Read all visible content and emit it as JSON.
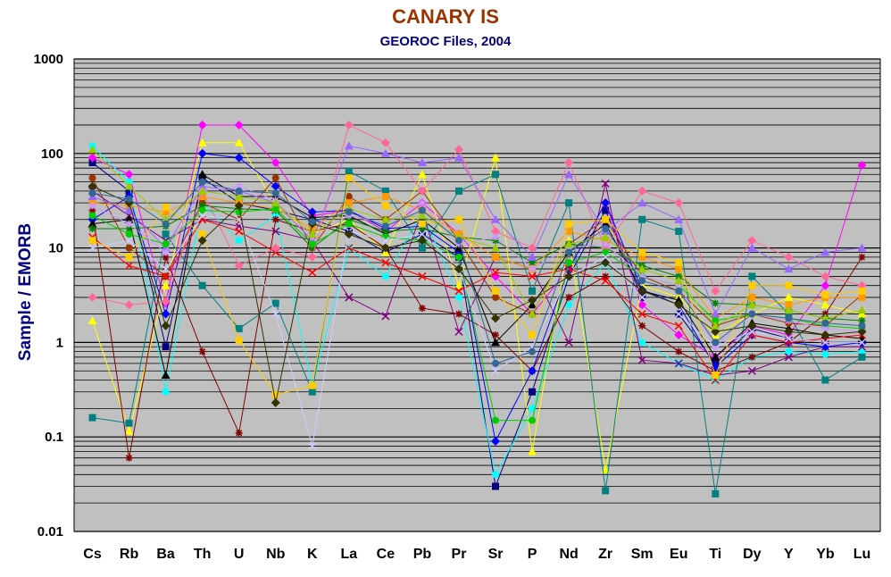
{
  "chart_data": {
    "type": "line",
    "title": "CANARY IS",
    "subtitle": "GEOROC Files, 2004",
    "xlabel": "",
    "ylabel": "Sample / EMORB",
    "y_scale": "log",
    "ylim": [
      0.01,
      1000
    ],
    "y_ticks": [
      "0.01",
      "0.1",
      "1",
      "10",
      "100",
      "1000"
    ],
    "grid": true,
    "legend": "none",
    "plot_background": "#c0c0c0",
    "categories": [
      "Cs",
      "Rb",
      "Ba",
      "Th",
      "U",
      "Nb",
      "K",
      "La",
      "Ce",
      "Pb",
      "Pr",
      "Sr",
      "P",
      "Nd",
      "Zr",
      "Sm",
      "Eu",
      "Ti",
      "Dy",
      "Y",
      "Yb",
      "Lu"
    ],
    "series": [
      {
        "color": "#000080",
        "values": [
          80,
          40,
          0.9,
          55,
          30,
          25,
          20,
          15,
          9,
          14,
          8,
          0.03,
          0.3,
          5,
          25,
          3,
          2,
          0.6,
          1.4,
          1.1,
          1,
          1
        ]
      },
      {
        "color": "#ff00ff",
        "values": [
          90,
          60,
          2.6,
          200,
          200,
          80,
          22,
          25,
          15,
          30,
          14,
          5,
          2,
          6,
          30,
          2.5,
          1.2,
          0.7,
          1.5,
          1.2,
          4,
          75
        ]
      },
      {
        "color": "#ffff00",
        "values": [
          1.7,
          0.115,
          4,
          130,
          130,
          28,
          14,
          20,
          9,
          60,
          4,
          90,
          0.07,
          12,
          0.045,
          4,
          3,
          1.2,
          2,
          3,
          2.5,
          2
        ]
      },
      {
        "color": "#00ffff",
        "values": [
          120,
          50,
          0.3,
          30,
          12,
          22,
          0.35,
          10,
          5,
          24,
          3,
          0.04,
          0.2,
          2.5,
          7,
          1,
          0.6,
          0.4,
          0.7,
          0.8,
          0.75,
          0.8
        ]
      },
      {
        "color": "#800080",
        "values": [
          40,
          22,
          12,
          20,
          17,
          15,
          12,
          3,
          1.9,
          25,
          1.3,
          8,
          6,
          1,
          48,
          0.65,
          0.6,
          0.45,
          0.5,
          0.7,
          0.9,
          0.9
        ]
      },
      {
        "color": "#800000",
        "values": [
          25,
          0.06,
          8,
          0.8,
          0.11,
          20,
          15,
          18,
          10,
          2.3,
          2,
          1.2,
          0.5,
          3,
          5,
          1.5,
          0.8,
          0.5,
          0.7,
          1,
          2,
          8
        ]
      },
      {
        "color": "#008080",
        "values": [
          0.16,
          0.14,
          14,
          4,
          1.4,
          2.6,
          0.3,
          65,
          40,
          10,
          40,
          60,
          3.5,
          30,
          0.027,
          20,
          15,
          0.025,
          5,
          2,
          0.4,
          0.7
        ]
      },
      {
        "color": "#0000ff",
        "values": [
          20,
          35,
          2,
          100,
          90,
          45,
          24,
          25,
          16,
          17,
          9,
          0.09,
          0.5,
          6,
          30,
          3.6,
          2.5,
          0.55,
          1.2,
          1,
          0.9,
          1
        ]
      },
      {
        "color": "#000000",
        "values": [
          18,
          20,
          0.45,
          60,
          35,
          35,
          21,
          22,
          14,
          20,
          10,
          1,
          2.5,
          9,
          18,
          3.5,
          2.8,
          0.7,
          1.6,
          1.4,
          1.2,
          1.1
        ]
      },
      {
        "color": "#993300",
        "values": [
          55,
          10,
          5,
          30,
          20,
          55,
          10,
          35,
          20,
          40,
          12,
          3,
          2,
          11,
          20,
          5,
          3.5,
          1.5,
          2,
          1.6,
          1.5,
          3.2
        ]
      },
      {
        "color": "#ff0000",
        "values": [
          13,
          6.5,
          5,
          20,
          15,
          9,
          5.5,
          10,
          7,
          5,
          3.5,
          5.5,
          5,
          6,
          4.5,
          2,
          1.5,
          0.4,
          1.2,
          1,
          1.1,
          1.2
        ]
      },
      {
        "color": "#008000",
        "values": [
          16,
          16,
          17,
          28,
          26,
          25,
          10,
          20,
          15,
          16,
          13,
          12,
          7,
          11,
          10,
          6.5,
          5,
          2.6,
          2.5,
          2.2,
          1.8,
          1.7
        ]
      },
      {
        "color": "#ff9900",
        "values": [
          30,
          28,
          24,
          35,
          30,
          26,
          16,
          30,
          35,
          25,
          14,
          8,
          6,
          15,
          12,
          8,
          6,
          1.8,
          3,
          2.5,
          3,
          3
        ]
      },
      {
        "color": "#ff6699",
        "values": [
          3,
          2.5,
          2.7,
          40,
          6.5,
          10,
          8,
          200,
          130,
          40,
          110,
          15,
          10,
          80,
          10,
          40,
          30,
          3.5,
          12,
          8,
          5,
          4
        ]
      },
      {
        "color": "#9966ff",
        "values": [
          35,
          25,
          10,
          45,
          40,
          30,
          12,
          120,
          100,
          80,
          90,
          20,
          8,
          60,
          15,
          30,
          20,
          2,
          10,
          6,
          9,
          10
        ]
      },
      {
        "color": "#00cc00",
        "values": [
          22,
          14,
          11,
          25,
          24,
          26,
          11,
          18,
          13,
          12,
          8,
          0.15,
          0.15,
          7,
          9,
          5,
          4,
          1.7,
          2,
          1.8,
          1.5,
          1.4
        ]
      },
      {
        "color": "#ccccff",
        "values": [
          10,
          12,
          6,
          22,
          20,
          2,
          0.08,
          15,
          12,
          14,
          6,
          0.5,
          0.9,
          5,
          8,
          3,
          2,
          0.9,
          1.3,
          1.1,
          1,
          1
        ]
      },
      {
        "color": "#cc99ff",
        "values": [
          28,
          18,
          9,
          40,
          45,
          32,
          13,
          22,
          18,
          30,
          11,
          13,
          6,
          10,
          11,
          5,
          4,
          0.9,
          2,
          1.7,
          1.4,
          1.3
        ]
      },
      {
        "color": "#ffcc00",
        "values": [
          12,
          8,
          27,
          14,
          1.05,
          0.28,
          0.35,
          55,
          28,
          18,
          20,
          3.5,
          1.2,
          18,
          20,
          9,
          7,
          0.45,
          4,
          4,
          3.2,
          3.5
        ]
      },
      {
        "color": "#333300",
        "values": [
          45,
          30,
          1.5,
          12,
          28,
          0.23,
          18,
          14,
          10,
          12,
          6,
          1.8,
          2.8,
          5,
          7,
          3.5,
          2.5,
          1.3,
          1.5,
          1.3,
          1.2,
          1.3
        ]
      },
      {
        "color": "#99cc00",
        "values": [
          110,
          45,
          20,
          40,
          35,
          30,
          14,
          26,
          20,
          22,
          13,
          10,
          2,
          11,
          13,
          6,
          4.5,
          1.5,
          2.5,
          2.2,
          1.8,
          2.2
        ]
      },
      {
        "color": "#336699",
        "values": [
          38,
          33,
          18,
          50,
          40,
          38,
          19,
          24,
          17,
          25,
          12,
          0.6,
          0.8,
          9,
          16,
          4.5,
          3.5,
          1,
          2,
          1.8,
          1.6,
          1.5
        ]
      }
    ]
  }
}
